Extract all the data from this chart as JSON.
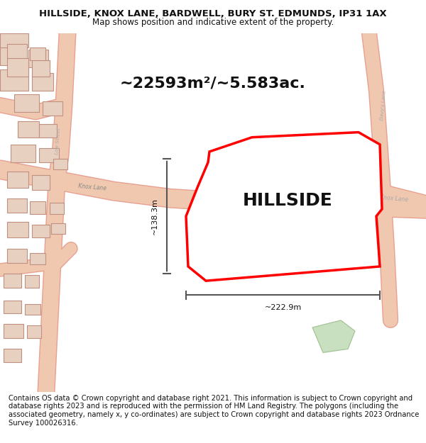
{
  "title": "HILLSIDE, KNOX LANE, BARDWELL, BURY ST. EDMUNDS, IP31 1AX",
  "subtitle": "Map shows position and indicative extent of the property.",
  "area_text": "~22593m²/~5.583ac.",
  "property_label": "HILLSIDE",
  "dim_vertical": "~138.3m",
  "dim_horizontal": "~222.9m",
  "footer": "Contains OS data © Crown copyright and database right 2021. This information is subject to Crown copyright and database rights 2023 and is reproduced with the permission of HM Land Registry. The polygons (including the associated geometry, namely x, y co-ordinates) are subject to Crown copyright and database rights 2023 Ordnance Survey 100026316.",
  "bg_color": "#f5f0eb",
  "map_bg": "#f5f0eb",
  "plot_outline_color": "#ff0000",
  "plot_fill_color": "#ffffff",
  "road_color": "#f0c8b0",
  "building_color": "#e8d0c0",
  "dim_color": "#555555",
  "text_color": "#111111",
  "road_outline_color": "#e8a090",
  "green_patch_color": "#c8e0c0",
  "title_fontsize": 9.5,
  "subtitle_fontsize": 8.5,
  "area_fontsize": 16,
  "label_fontsize": 18,
  "footer_fontsize": 7.2
}
